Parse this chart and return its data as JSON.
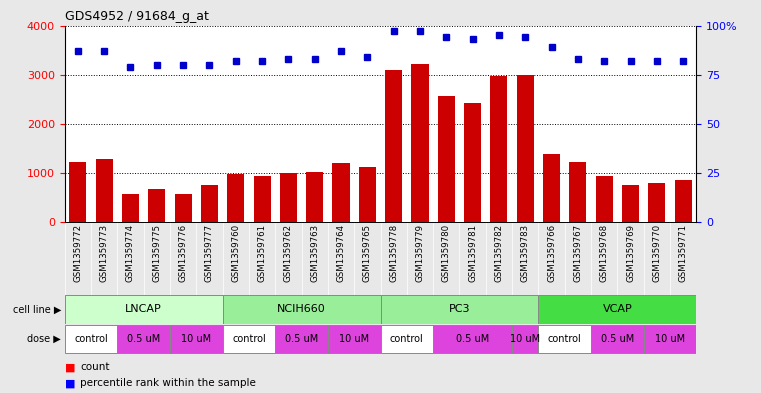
{
  "title": "GDS4952 / 91684_g_at",
  "samples": [
    "GSM1359772",
    "GSM1359773",
    "GSM1359774",
    "GSM1359775",
    "GSM1359776",
    "GSM1359777",
    "GSM1359760",
    "GSM1359761",
    "GSM1359762",
    "GSM1359763",
    "GSM1359764",
    "GSM1359765",
    "GSM1359778",
    "GSM1359779",
    "GSM1359780",
    "GSM1359781",
    "GSM1359782",
    "GSM1359783",
    "GSM1359766",
    "GSM1359767",
    "GSM1359768",
    "GSM1359769",
    "GSM1359770",
    "GSM1359771"
  ],
  "counts": [
    1230,
    1280,
    580,
    680,
    580,
    760,
    970,
    940,
    990,
    1020,
    1200,
    1120,
    3100,
    3220,
    2560,
    2420,
    2980,
    3000,
    1380,
    1220,
    940,
    760,
    800,
    850
  ],
  "percentile_ranks": [
    87,
    87,
    79,
    80,
    80,
    80,
    82,
    82,
    83,
    83,
    87,
    84,
    97,
    97,
    94,
    93,
    95,
    94,
    89,
    83,
    82,
    82,
    82,
    82
  ],
  "bar_color": "#cc0000",
  "dot_color": "#0000cc",
  "cell_line_groups": [
    {
      "name": "LNCAP",
      "start": 0,
      "end": 6,
      "color": "#ccffcc"
    },
    {
      "name": "NCIH660",
      "start": 6,
      "end": 12,
      "color": "#99ee99"
    },
    {
      "name": "PC3",
      "start": 12,
      "end": 18,
      "color": "#99ee99"
    },
    {
      "name": "VCAP",
      "start": 18,
      "end": 24,
      "color": "#44dd44"
    }
  ],
  "dose_groups": [
    {
      "label": "control",
      "start": 0,
      "end": 2,
      "color": "#ffffff"
    },
    {
      "label": "0.5 uM",
      "start": 2,
      "end": 4,
      "color": "#dd44dd"
    },
    {
      "label": "10 uM",
      "start": 4,
      "end": 6,
      "color": "#dd44dd"
    },
    {
      "label": "control",
      "start": 6,
      "end": 8,
      "color": "#ffffff"
    },
    {
      "label": "0.5 uM",
      "start": 8,
      "end": 10,
      "color": "#dd44dd"
    },
    {
      "label": "10 uM",
      "start": 10,
      "end": 12,
      "color": "#dd44dd"
    },
    {
      "label": "control",
      "start": 12,
      "end": 14,
      "color": "#ffffff"
    },
    {
      "label": "0.5 uM",
      "start": 14,
      "end": 17,
      "color": "#dd44dd"
    },
    {
      "label": "10 uM",
      "start": 17,
      "end": 18,
      "color": "#dd44dd"
    },
    {
      "label": "control",
      "start": 18,
      "end": 20,
      "color": "#ffffff"
    },
    {
      "label": "0.5 uM",
      "start": 20,
      "end": 22,
      "color": "#dd44dd"
    },
    {
      "label": "10 uM",
      "start": 22,
      "end": 24,
      "color": "#dd44dd"
    }
  ],
  "ylim_left": [
    0,
    4000
  ],
  "ylim_right": [
    0,
    100
  ],
  "yticks_left": [
    0,
    1000,
    2000,
    3000,
    4000
  ],
  "yticks_right": [
    0,
    25,
    50,
    75,
    100
  ],
  "background_color": "#e8e8e8",
  "plot_bg_color": "#ffffff",
  "xticklabel_bg": "#d8d8d8"
}
